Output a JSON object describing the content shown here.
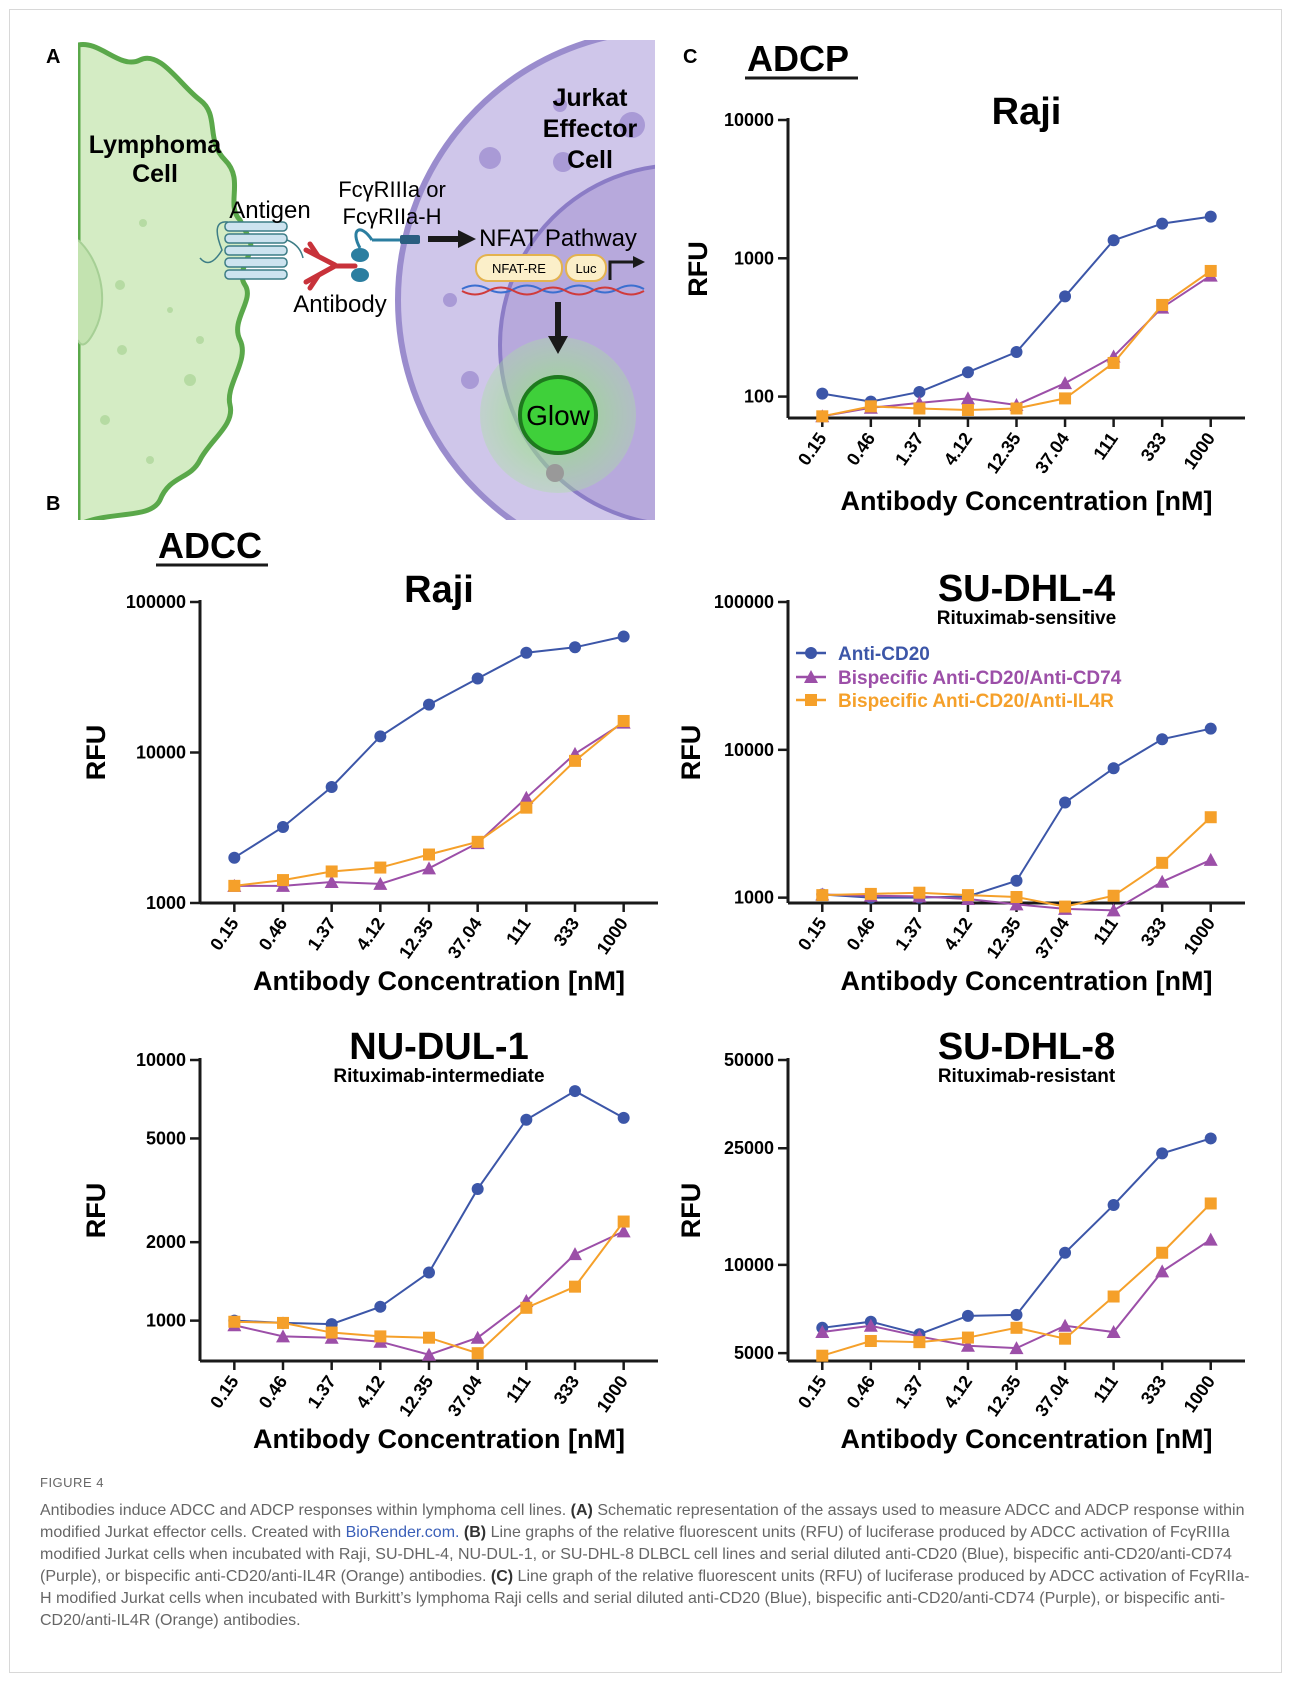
{
  "panels": {
    "a": "A",
    "b": "B",
    "c": "C"
  },
  "section_titles": {
    "adcc": "ADCC",
    "adcp": "ADCP"
  },
  "schematic": {
    "lymphoma_line1": "Lymphoma",
    "lymphoma_line2": "Cell",
    "antigen": "Antigen",
    "antibody": "Antibody",
    "receptor_line1": "FcγRIIIa or",
    "receptor_line2": "FcγRIIa-H",
    "nfat_pathway": "NFAT Pathway",
    "nfat_re": "NFAT-RE",
    "luc": "Luc",
    "jurkat_line1": "Jurkat",
    "jurkat_line2": "Effector",
    "jurkat_line3": "Cell",
    "glow": "Glow",
    "colors": {
      "lymphoma_fill": "#d4ecc4",
      "lymphoma_edge": "#5aa84a",
      "jurkat_fill": "#cfc6ea",
      "nucleus_fill": "#b7a9dc",
      "glow": "#3fd03a"
    }
  },
  "legend": [
    {
      "label": "Anti-CD20",
      "color": "#3c56a8",
      "marker": "circle"
    },
    {
      "label": "Bispecific Anti-CD20/Anti-CD74",
      "color": "#9c4fa8",
      "marker": "triangle"
    },
    {
      "label": "Bispecific Anti-CD20/Anti-IL4R",
      "color": "#f5a02a",
      "marker": "square"
    }
  ],
  "chart_data": [
    {
      "id": "adcp-raji",
      "type": "line",
      "title": "Raji",
      "subtitle": "",
      "xlabel": "Antibody Concentration [nM]",
      "ylabel": "RFU",
      "yscale": "log",
      "ylim": [
        70,
        10000
      ],
      "yticks": [
        100,
        1000,
        10000
      ],
      "categories": [
        "0.15",
        "0.46",
        "1.37",
        "4.12",
        "12.35",
        "37.04",
        "111",
        "333",
        "1000"
      ],
      "series": [
        {
          "name": "Anti-CD20",
          "values": [
            105,
            92,
            108,
            150,
            210,
            530,
            1350,
            1780,
            2000
          ]
        },
        {
          "name": "Bispecific Anti-CD20/Anti-CD74",
          "values": [
            72,
            83,
            90,
            97,
            87,
            125,
            195,
            440,
            750
          ]
        },
        {
          "name": "Bispecific Anti-CD20/Anti-IL4R",
          "values": [
            72,
            85,
            82,
            80,
            82,
            97,
            175,
            460,
            810
          ]
        }
      ]
    },
    {
      "id": "adcc-raji",
      "type": "line",
      "title": "Raji",
      "subtitle": "",
      "xlabel": "Antibody Concentration [nM]",
      "ylabel": "RFU",
      "yscale": "log",
      "ylim": [
        1000,
        100000
      ],
      "yticks": [
        1000,
        10000,
        100000
      ],
      "categories": [
        "0.15",
        "0.46",
        "1.37",
        "4.12",
        "12.35",
        "37.04",
        "111",
        "333",
        "1000"
      ],
      "series": [
        {
          "name": "Anti-CD20",
          "values": [
            2000,
            3200,
            5900,
            12800,
            20800,
            31000,
            46000,
            50000,
            59000
          ]
        },
        {
          "name": "Bispecific Anti-CD20/Anti-CD74",
          "values": [
            1300,
            1300,
            1380,
            1340,
            1700,
            2500,
            5000,
            9800,
            15800
          ]
        },
        {
          "name": "Bispecific Anti-CD20/Anti-IL4R",
          "values": [
            1300,
            1420,
            1620,
            1720,
            2100,
            2550,
            4300,
            8800,
            16200
          ]
        }
      ]
    },
    {
      "id": "adcc-sudhl4",
      "type": "line",
      "title": "SU-DHL-4",
      "subtitle": "Rituximab-sensitive",
      "xlabel": "Antibody Concentration [nM]",
      "ylabel": "RFU",
      "yscale": "log",
      "ylim": [
        920,
        100000
      ],
      "yticks": [
        1000,
        10000,
        100000
      ],
      "categories": [
        "0.15",
        "0.46",
        "1.37",
        "4.12",
        "12.35",
        "37.04",
        "111",
        "333",
        "1000"
      ],
      "series": [
        {
          "name": "Anti-CD20",
          "values": [
            1050,
            1000,
            1000,
            1020,
            1300,
            4400,
            7500,
            11800,
            13900
          ]
        },
        {
          "name": "Bispecific Anti-CD20/Anti-CD74",
          "values": [
            1050,
            1030,
            1020,
            980,
            900,
            840,
            820,
            1280,
            1800
          ]
        },
        {
          "name": "Bispecific Anti-CD20/Anti-IL4R",
          "values": [
            1040,
            1060,
            1080,
            1040,
            1010,
            870,
            1030,
            1720,
            3500
          ]
        }
      ]
    },
    {
      "id": "adcc-nudul1",
      "type": "line",
      "title": "NU-DUL-1",
      "subtitle": "Rituximab-intermediate",
      "xlabel": "Antibody Concentration [nM]",
      "ylabel": "RFU",
      "yscale": "log",
      "ylim": [
        700,
        10000
      ],
      "yticks": [
        1000,
        2000,
        5000,
        10000
      ],
      "categories": [
        "0.15",
        "0.46",
        "1.37",
        "4.12",
        "12.35",
        "37.04",
        "111",
        "333",
        "1000"
      ],
      "series": [
        {
          "name": "Anti-CD20",
          "values": [
            1000,
            980,
            970,
            1130,
            1530,
            3200,
            5900,
            7600,
            6000
          ]
        },
        {
          "name": "Bispecific Anti-CD20/Anti-CD74",
          "values": [
            960,
            870,
            860,
            830,
            740,
            860,
            1190,
            1800,
            2200
          ]
        },
        {
          "name": "Bispecific Anti-CD20/Anti-IL4R",
          "values": [
            990,
            980,
            900,
            870,
            860,
            750,
            1120,
            1350,
            2400
          ]
        }
      ]
    },
    {
      "id": "adcc-sudhl8",
      "type": "line",
      "title": "SU-DHL-8",
      "subtitle": "Rituximab-resistant",
      "xlabel": "Antibody Concentration [nM]",
      "ylabel": "RFU",
      "yscale": "log",
      "ylim": [
        4700,
        50000
      ],
      "yticks": [
        5000,
        10000,
        25000,
        50000
      ],
      "categories": [
        "0.15",
        "0.46",
        "1.37",
        "4.12",
        "12.35",
        "37.04",
        "111",
        "333",
        "1000"
      ],
      "series": [
        {
          "name": "Anti-CD20",
          "values": [
            6100,
            6400,
            5800,
            6700,
            6750,
            11000,
            16000,
            24000,
            27000
          ]
        },
        {
          "name": "Bispecific Anti-CD20/Anti-CD74",
          "values": [
            5900,
            6200,
            5700,
            5300,
            5200,
            6200,
            5900,
            9500,
            12200
          ]
        },
        {
          "name": "Bispecific Anti-CD20/Anti-IL4R",
          "values": [
            4900,
            5500,
            5450,
            5650,
            6100,
            5600,
            7800,
            11000,
            16200
          ]
        }
      ]
    }
  ],
  "caption": {
    "label": "FIGURE 4",
    "title": "Antibodies induce ADCC and ADCP responses within lymphoma cell lines.",
    "a_tag": "(A)",
    "a_text": "Schematic representation of the assays used to measure ADCC and ADCP response within modified Jurkat effector cells. Created with",
    "a_link": "BioRender.com.",
    "b_tag": "(B)",
    "b_text": "Line graphs of the relative fluorescent units (RFU) of luciferase produced by ADCC activation of FcγRIIIa modified Jurkat cells when incubated with Raji, SU-DHL-4, NU-DUL-1, or SU-DHL-8 DLBCL cell lines and serial diluted anti-CD20 (Blue), bispecific anti-CD20/anti-CD74 (Purple), or bispecific anti-CD20/anti-IL4R (Orange) antibodies.",
    "c_tag": "(C)",
    "c_text": "Line graph of the relative fluorescent units (RFU) of luciferase produced by ADCC activation of FcγRIIa-H modified Jurkat cells when incubated with Burkitt’s lymphoma Raji cells and serial diluted anti-CD20 (Blue), bispecific anti-CD20/anti-CD74 (Purple), or bispecific anti-CD20/anti-IL4R (Orange) antibodies."
  }
}
